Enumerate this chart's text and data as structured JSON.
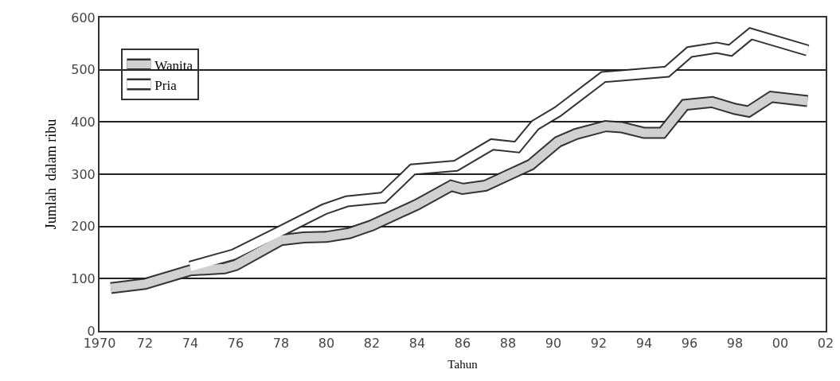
{
  "chart_data": {
    "type": "line",
    "xlabel": "Tahun",
    "ylabel": "Jumlah  dalam ribu",
    "series": [
      {
        "name": "Wanita",
        "color": "#d0d0d0",
        "x": [
          1970.5,
          1972,
          1974,
          1975.5,
          1976,
          1978,
          1979,
          1980,
          1981,
          1982,
          1984,
          1985.5,
          1986,
          1987,
          1988,
          1989,
          1990.2,
          1991,
          1992.3,
          1993,
          1994,
          1994.8,
          1995.8,
          1997,
          1998,
          1998.6,
          1999.6,
          2001.2
        ],
        "values": [
          82,
          90,
          116,
          120,
          126,
          174,
          179,
          180,
          187,
          202,
          242,
          278,
          272,
          278,
          298,
          318,
          362,
          377,
          392,
          390,
          379,
          379,
          433,
          438,
          425,
          420,
          448,
          440
        ]
      },
      {
        "name": "Pria",
        "color": "#ffffff",
        "x": [
          1974,
          1975.9,
          1977.8,
          1979.9,
          1980.9,
          1982.5,
          1983.8,
          1985.7,
          1987.3,
          1988.4,
          1989.2,
          1990.2,
          1992.2,
          1995,
          1996,
          1997.2,
          1997.8,
          1998.7,
          2001.2
        ],
        "values": [
          123,
          146,
          187,
          233,
          248,
          255,
          309,
          316,
          357,
          352,
          394,
          420,
          486,
          496,
          534,
          542,
          537,
          569,
          537
        ]
      }
    ],
    "xlim": [
      1970,
      2002
    ],
    "xticks": [
      {
        "value": 1970,
        "label": "1970"
      },
      {
        "value": 1972,
        "label": "72"
      },
      {
        "value": 1974,
        "label": "74"
      },
      {
        "value": 1976,
        "label": "76"
      },
      {
        "value": 1978,
        "label": "78"
      },
      {
        "value": 1980,
        "label": "80"
      },
      {
        "value": 1982,
        "label": "82"
      },
      {
        "value": 1984,
        "label": "84"
      },
      {
        "value": 1986,
        "label": "86"
      },
      {
        "value": 1988,
        "label": "88"
      },
      {
        "value": 1990,
        "label": "90"
      },
      {
        "value": 1992,
        "label": "92"
      },
      {
        "value": 1994,
        "label": "94"
      },
      {
        "value": 1996,
        "label": "96"
      },
      {
        "value": 1998,
        "label": "98"
      },
      {
        "value": 2000,
        "label": "00"
      },
      {
        "value": 2002,
        "label": "02"
      }
    ],
    "ylim": [
      0,
      600
    ],
    "yticks": [
      0,
      100,
      200,
      300,
      400,
      500,
      600
    ],
    "grid": "y",
    "legend": "top left"
  }
}
